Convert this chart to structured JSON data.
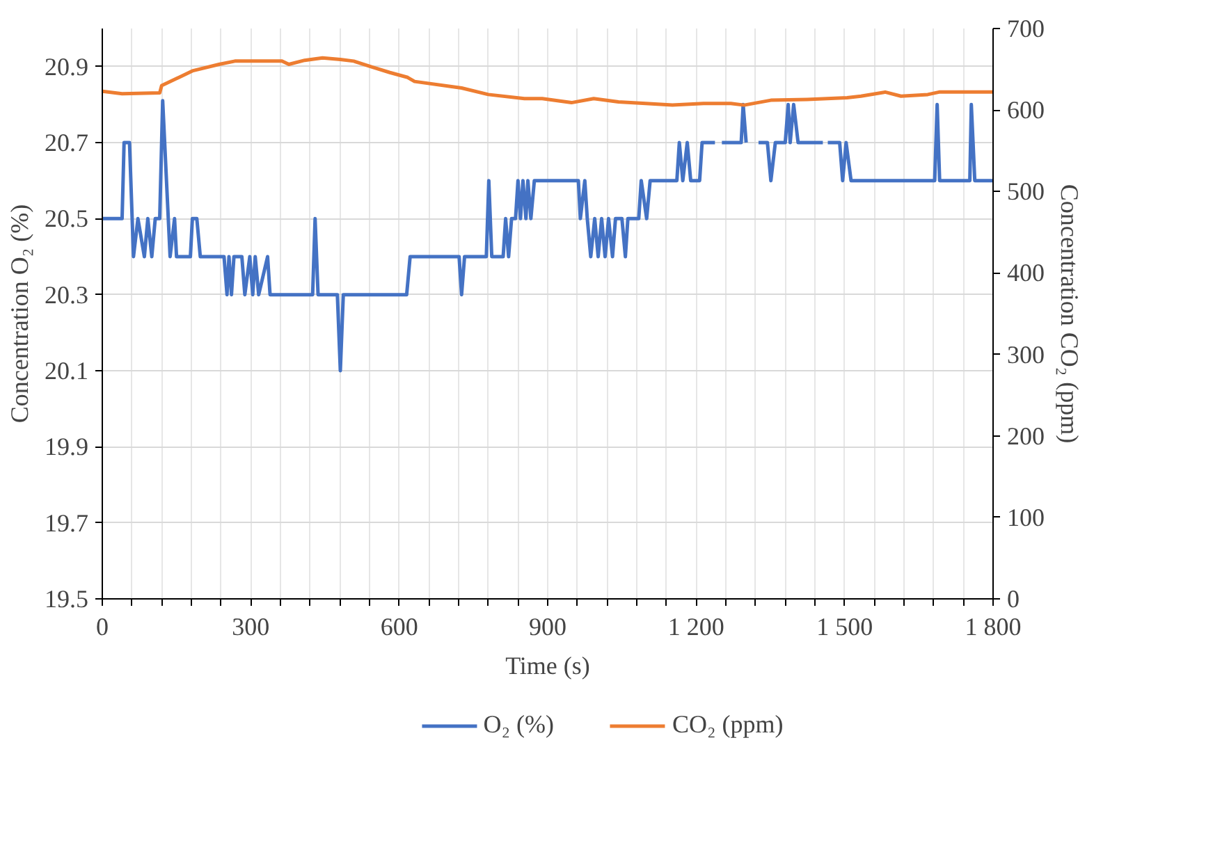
{
  "chart_data": {
    "type": "line",
    "xlabel": "Time (s)",
    "ylabel": "Concentration O₂ (%)",
    "y2label": "Concentration CO₂ (ppm)",
    "xlim": [
      0,
      1800
    ],
    "ylim": [
      19.5,
      21.0
    ],
    "y2lim": [
      0,
      700
    ],
    "xticks": [
      0,
      {
        "value": 60,
        "label": null
      },
      {
        "value": 120,
        "label": null
      },
      {
        "value": 180,
        "label": null
      },
      {
        "value": 240,
        "label": null
      },
      300,
      {
        "value": 360,
        "label": null
      },
      {
        "value": 420,
        "label": null
      },
      {
        "value": 480,
        "label": null
      },
      {
        "value": 540,
        "label": null
      },
      600,
      {
        "value": 660,
        "label": null
      },
      {
        "value": 720,
        "label": null
      },
      {
        "value": 780,
        "label": null
      },
      {
        "value": 840,
        "label": null
      },
      900,
      {
        "value": 960,
        "label": null
      },
      {
        "value": 1020,
        "label": null
      },
      {
        "value": 1080,
        "label": null
      },
      {
        "value": 1140,
        "label": null
      },
      {
        "value": 1200,
        "label": "1 200"
      },
      {
        "value": 1260,
        "label": null
      },
      {
        "value": 1320,
        "label": null
      },
      {
        "value": 1380,
        "label": null
      },
      {
        "value": 1440,
        "label": null
      },
      {
        "value": 1500,
        "label": "1 500"
      },
      {
        "value": 1560,
        "label": null
      },
      {
        "value": 1620,
        "label": null
      },
      {
        "value": 1680,
        "label": null
      },
      {
        "value": 1740,
        "label": null
      },
      {
        "value": 1800,
        "label": "1 800"
      }
    ],
    "yticks": [
      19.5,
      19.7,
      19.9,
      20.1,
      20.3,
      20.5,
      20.7,
      20.9
    ],
    "y2ticks": [
      0,
      100,
      200,
      300,
      400,
      500,
      600,
      700
    ],
    "grid": true,
    "legend": "bottom",
    "marker": "none",
    "line_style": "solid",
    "series": [
      {
        "name": "O₂ (%)",
        "color": "#4472c4",
        "x": [
          0,
          40,
          44,
          55,
          63,
          72,
          85,
          92,
          100,
          107,
          116,
          122,
          137,
          146,
          150,
          178,
          182,
          191,
          198,
          246,
          252,
          256,
          261,
          266,
          282,
          288,
          298,
          304,
          309,
          316,
          334,
          339,
          425,
          430,
          436,
          475,
          481,
          487,
          615,
          622,
          721,
          726,
          732,
          776,
          781,
          787,
          810,
          815,
          821,
          827,
          835,
          840,
          845,
          850,
          856,
          860,
          866,
          873,
          962,
          966,
          975,
          980,
          987,
          995,
          1002,
          1009,
          1016,
          1023,
          1031,
          1037,
          1050,
          1057,
          1062,
          1084,
          1089,
          1100,
          1107,
          1161,
          1166,
          1173,
          1182,
          1189,
          1207,
          1212,
          1238,
          1245,
          1252,
          1291,
          1295,
          1301,
          1315,
          1326,
          1344,
          1351,
          1360,
          1380,
          1386,
          1390,
          1397,
          1406,
          1456,
          1460,
          1466,
          1490,
          1496,
          1503,
          1513,
          1682,
          1687,
          1692,
          1753,
          1756,
          1763,
          1800
        ],
        "values": [
          20.5,
          20.5,
          20.7,
          20.7,
          20.4,
          20.5,
          20.4,
          20.5,
          20.4,
          20.5,
          20.5,
          20.81,
          20.4,
          20.5,
          20.4,
          20.4,
          20.5,
          20.5,
          20.4,
          20.4,
          20.3,
          20.4,
          20.3,
          20.4,
          20.4,
          20.3,
          20.4,
          20.3,
          20.4,
          20.3,
          20.4,
          20.3,
          20.3,
          20.5,
          20.3,
          20.3,
          20.1,
          20.3,
          20.3,
          20.4,
          20.4,
          20.3,
          20.4,
          20.4,
          20.6,
          20.4,
          20.4,
          20.5,
          20.4,
          20.5,
          20.5,
          20.6,
          20.5,
          20.6,
          20.5,
          20.6,
          20.5,
          20.6,
          20.6,
          20.5,
          20.6,
          20.5,
          20.4,
          20.5,
          20.4,
          20.5,
          20.4,
          20.5,
          20.4,
          20.5,
          20.5,
          20.4,
          20.5,
          20.5,
          20.6,
          20.5,
          20.6,
          20.6,
          20.7,
          20.6,
          20.7,
          20.6,
          20.6,
          20.7,
          20.7,
          null,
          20.7,
          20.7,
          20.8,
          20.7,
          null,
          20.7,
          20.7,
          20.6,
          20.7,
          20.7,
          20.8,
          20.7,
          20.8,
          20.7,
          20.7,
          null,
          20.7,
          20.7,
          20.6,
          20.7,
          20.6,
          20.6,
          20.8,
          20.6,
          20.6,
          20.8,
          20.6,
          20.6
        ]
      },
      {
        "name": "CO₂ (ppm)",
        "color": "#ed7d31",
        "axis": "y2",
        "x": [
          0,
          40,
          116,
          120,
          155,
          182,
          236,
          268,
          363,
          377,
          409,
          445,
          481,
          508,
          544,
          581,
          617,
          631,
          726,
          780,
          853,
          889,
          948,
          993,
          1043,
          1098,
          1152,
          1215,
          1270,
          1297,
          1351,
          1424,
          1505,
          1533,
          1582,
          1614,
          1668,
          1691,
          1800
        ],
        "values": [
          623,
          620,
          621,
          630,
          640,
          648,
          656,
          660,
          660,
          656,
          661,
          664,
          662,
          660,
          653,
          646,
          640,
          635,
          627,
          619,
          614,
          614,
          609,
          614,
          610,
          608,
          606,
          608,
          608,
          606,
          612,
          613,
          615,
          617,
          622,
          617,
          619,
          622,
          622
        ]
      }
    ]
  }
}
